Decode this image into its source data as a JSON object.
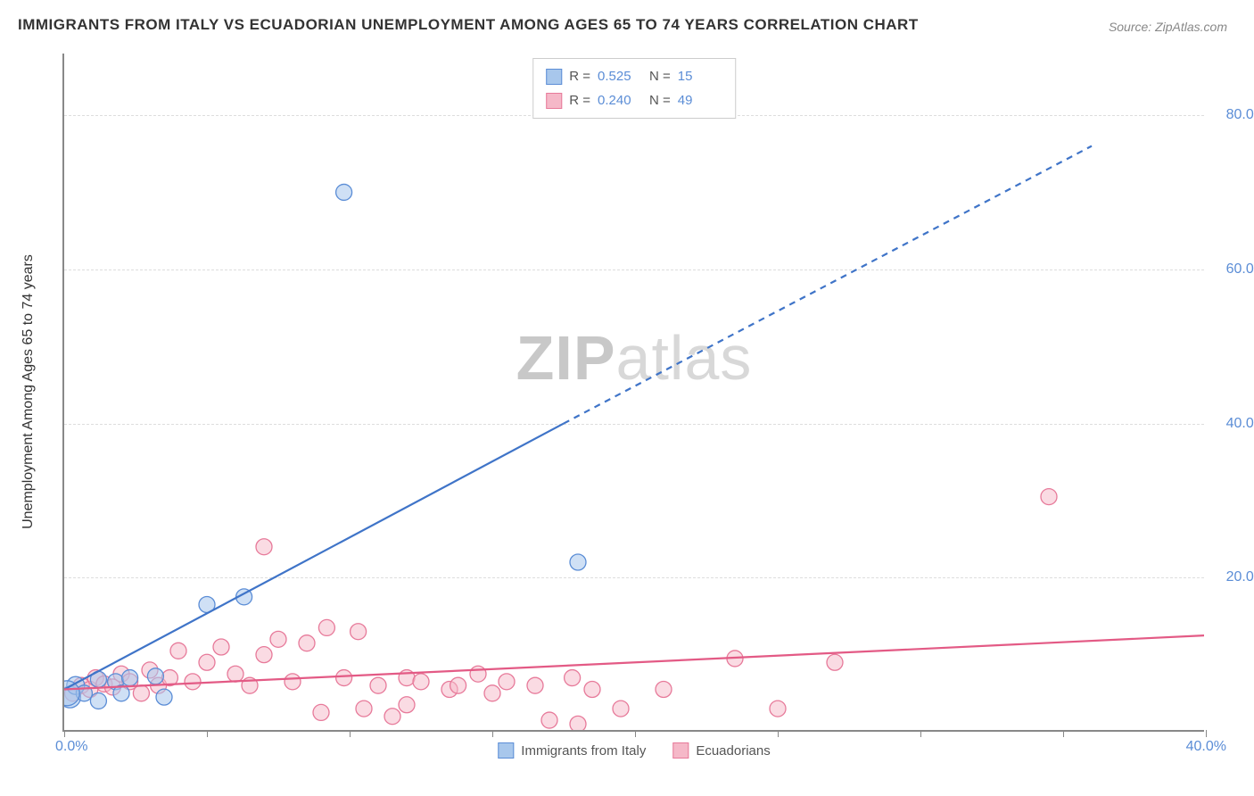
{
  "title": "IMMIGRANTS FROM ITALY VS ECUADORIAN UNEMPLOYMENT AMONG AGES 65 TO 74 YEARS CORRELATION CHART",
  "source": "Source: ZipAtlas.com",
  "ylabel": "Unemployment Among Ages 65 to 74 years",
  "watermark_bold": "ZIP",
  "watermark_light": "atlas",
  "chart": {
    "type": "scatter",
    "xlim": [
      0,
      40
    ],
    "ylim": [
      0,
      88
    ],
    "x_origin_label": "0.0%",
    "x_end_label": "40.0%",
    "x_tick_positions": [
      0,
      5,
      10,
      15,
      20,
      25,
      30,
      35,
      40
    ],
    "y_ticks": [
      {
        "v": 20,
        "label": "20.0%"
      },
      {
        "v": 40,
        "label": "40.0%"
      },
      {
        "v": 60,
        "label": "60.0%"
      },
      {
        "v": 80,
        "label": "80.0%"
      }
    ],
    "background_color": "#ffffff",
    "grid_color": "#dddddd",
    "axis_color": "#888888",
    "series": [
      {
        "name": "Immigrants from Italy",
        "fill": "#a8c7ec",
        "stroke": "#5b8dd6",
        "fill_opacity": 0.55,
        "marker_r": 9,
        "R_label": "R =",
        "R": "0.525",
        "N_label": "N =",
        "N": "15",
        "trend": {
          "solid": {
            "x1": 0,
            "y1": 5.5,
            "x2": 17.5,
            "y2": 40
          },
          "dashed": {
            "x1": 17.5,
            "y1": 40,
            "x2": 36,
            "y2": 76
          },
          "color": "#3f74c8",
          "width": 2.2
        },
        "points": [
          {
            "x": 0.2,
            "y": 4.5,
            "r": 12
          },
          {
            "x": 0.4,
            "y": 6.0,
            "r": 10
          },
          {
            "x": 0.7,
            "y": 5.0,
            "r": 9
          },
          {
            "x": 1.2,
            "y": 6.8,
            "r": 9
          },
          {
            "x": 1.2,
            "y": 4.0,
            "r": 9
          },
          {
            "x": 1.8,
            "y": 6.5,
            "r": 9
          },
          {
            "x": 2.3,
            "y": 7.0,
            "r": 9
          },
          {
            "x": 2.0,
            "y": 5.0,
            "r": 9
          },
          {
            "x": 3.2,
            "y": 7.2,
            "r": 9
          },
          {
            "x": 3.5,
            "y": 4.5,
            "r": 9
          },
          {
            "x": 5.0,
            "y": 16.5,
            "r": 9
          },
          {
            "x": 6.3,
            "y": 17.5,
            "r": 9
          },
          {
            "x": 9.8,
            "y": 70.0,
            "r": 9
          },
          {
            "x": 18.0,
            "y": 22.0,
            "r": 9
          },
          {
            "x": 0.1,
            "y": 5.0,
            "r": 14
          }
        ]
      },
      {
        "name": "Ecuadorians",
        "fill": "#f5b8c8",
        "stroke": "#e77a9a",
        "fill_opacity": 0.5,
        "marker_r": 9,
        "R_label": "R =",
        "R": "0.240",
        "N_label": "N =",
        "N": "49",
        "trend": {
          "solid": {
            "x1": 0,
            "y1": 5.5,
            "x2": 40,
            "y2": 12.5
          },
          "color": "#e35a85",
          "width": 2.2
        },
        "points": [
          {
            "x": 0.3,
            "y": 5.0
          },
          {
            "x": 0.6,
            "y": 6.0
          },
          {
            "x": 0.9,
            "y": 5.5
          },
          {
            "x": 1.1,
            "y": 7.0
          },
          {
            "x": 1.4,
            "y": 6.2
          },
          {
            "x": 1.7,
            "y": 5.8
          },
          {
            "x": 2.0,
            "y": 7.5
          },
          {
            "x": 2.3,
            "y": 6.5
          },
          {
            "x": 2.7,
            "y": 5.0
          },
          {
            "x": 3.0,
            "y": 8.0
          },
          {
            "x": 3.3,
            "y": 6.0
          },
          {
            "x": 3.7,
            "y": 7.0
          },
          {
            "x": 4.0,
            "y": 10.5
          },
          {
            "x": 4.5,
            "y": 6.5
          },
          {
            "x": 5.0,
            "y": 9.0
          },
          {
            "x": 5.5,
            "y": 11.0
          },
          {
            "x": 6.0,
            "y": 7.5
          },
          {
            "x": 6.5,
            "y": 6.0
          },
          {
            "x": 7.0,
            "y": 24.0
          },
          {
            "x": 7.0,
            "y": 10.0
          },
          {
            "x": 7.5,
            "y": 12.0
          },
          {
            "x": 8.0,
            "y": 6.5
          },
          {
            "x": 8.5,
            "y": 11.5
          },
          {
            "x": 9.0,
            "y": 2.5
          },
          {
            "x": 9.2,
            "y": 13.5
          },
          {
            "x": 9.8,
            "y": 7.0
          },
          {
            "x": 10.3,
            "y": 13.0
          },
          {
            "x": 10.5,
            "y": 3.0
          },
          {
            "x": 11.0,
            "y": 6.0
          },
          {
            "x": 11.5,
            "y": 2.0
          },
          {
            "x": 12.0,
            "y": 3.5
          },
          {
            "x": 12.0,
            "y": 7.0
          },
          {
            "x": 12.5,
            "y": 6.5
          },
          {
            "x": 13.5,
            "y": 5.5
          },
          {
            "x": 13.8,
            "y": 6.0
          },
          {
            "x": 14.5,
            "y": 7.5
          },
          {
            "x": 15.0,
            "y": 5.0
          },
          {
            "x": 15.5,
            "y": 6.5
          },
          {
            "x": 16.5,
            "y": 6.0
          },
          {
            "x": 17.0,
            "y": 1.5
          },
          {
            "x": 17.8,
            "y": 7.0
          },
          {
            "x": 18.5,
            "y": 5.5
          },
          {
            "x": 18.0,
            "y": 1.0
          },
          {
            "x": 19.5,
            "y": 3.0
          },
          {
            "x": 21.0,
            "y": 5.5
          },
          {
            "x": 23.5,
            "y": 9.5
          },
          {
            "x": 25.0,
            "y": 3.0
          },
          {
            "x": 27.0,
            "y": 9.0
          },
          {
            "x": 34.5,
            "y": 30.5
          }
        ]
      }
    ],
    "legend_bottom": [
      {
        "label": "Immigrants from Italy",
        "fill": "#a8c7ec",
        "stroke": "#5b8dd6"
      },
      {
        "label": "Ecuadorians",
        "fill": "#f5b8c8",
        "stroke": "#e77a9a"
      }
    ]
  }
}
